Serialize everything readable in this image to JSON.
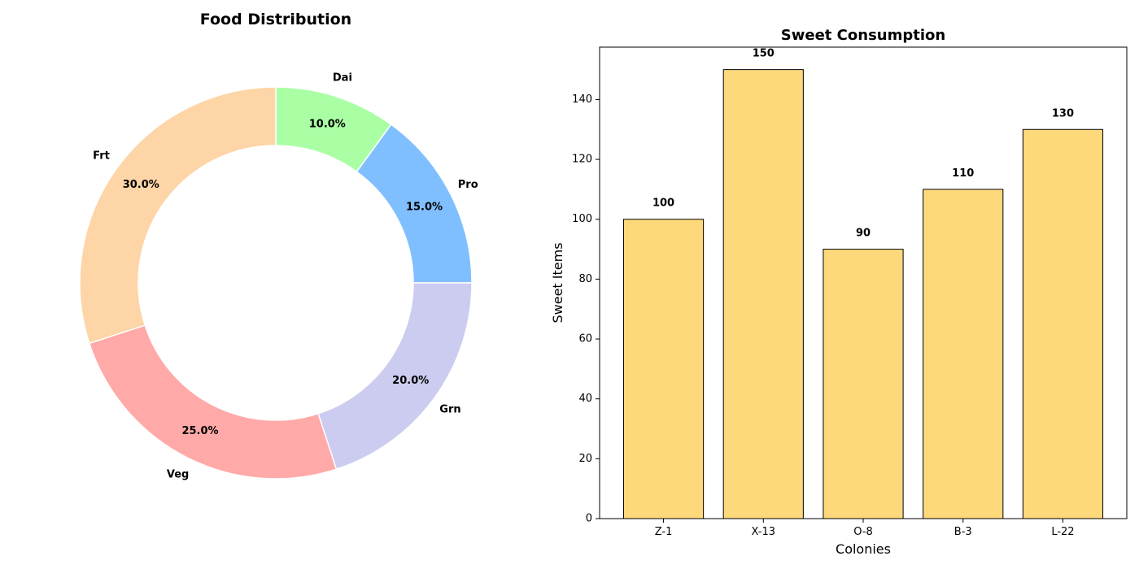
{
  "chart_data": [
    {
      "type": "pie",
      "style": "donut",
      "title": "Food Distribution",
      "labels": [
        "Pro",
        "Dai",
        "Frt",
        "Veg",
        "Grn"
      ],
      "values": [
        15.0,
        10.0,
        30.0,
        25.0,
        20.0
      ],
      "pct_labels": [
        "15.0%",
        "10.0%",
        "30.0%",
        "25.0%",
        "20.0%"
      ],
      "colors": [
        "#80bfff",
        "#aaffa5",
        "#fdd5a6",
        "#ffaaa8",
        "#ccccf0"
      ],
      "start_angle_deg": 0,
      "direction": "counterclockwise"
    },
    {
      "type": "bar",
      "title": "Sweet Consumption",
      "xlabel": "Colonies",
      "ylabel": "Sweet Items",
      "categories": [
        "Z-1",
        "X-13",
        "O-8",
        "B-3",
        "L-22"
      ],
      "values": [
        100,
        150,
        90,
        110,
        130
      ],
      "value_labels": [
        "100",
        "150",
        "90",
        "110",
        "130"
      ],
      "ylim": [
        0,
        157.5
      ],
      "yticks": [
        0,
        20,
        40,
        60,
        80,
        100,
        120,
        140
      ],
      "ytick_labels": [
        "0",
        "20",
        "40",
        "60",
        "80",
        "100",
        "120",
        "140"
      ],
      "bar_color": "#fdd97c",
      "edge_color": "#000000",
      "grid": false
    }
  ]
}
